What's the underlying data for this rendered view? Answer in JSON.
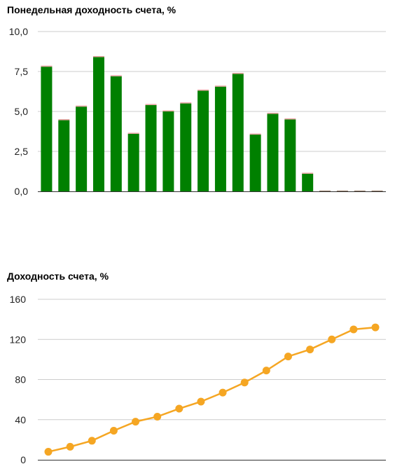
{
  "chart_data": [
    {
      "type": "bar",
      "title": "Понедельная доходность счета, %",
      "ylim": [
        0,
        10
      ],
      "yticks": [
        "0,0",
        "2,5",
        "5,0",
        "7,5",
        "10,0"
      ],
      "ytick_values": [
        0,
        2.5,
        5,
        7.5,
        10
      ],
      "grid": true,
      "color": "#008000",
      "cap_color": "#e8a0a0",
      "values": [
        7.8,
        4.45,
        5.3,
        8.4,
        7.2,
        3.6,
        5.4,
        5.0,
        5.5,
        6.3,
        6.55,
        7.35,
        3.55,
        4.85,
        4.5,
        1.1,
        0,
        0,
        0,
        0
      ]
    },
    {
      "type": "line",
      "title": "Доходность счета, %",
      "ylim": [
        0,
        160
      ],
      "yticks": [
        "0",
        "40",
        "80",
        "120",
        "160"
      ],
      "ytick_values": [
        0,
        40,
        80,
        120,
        160
      ],
      "grid": true,
      "color": "#f5a623",
      "values": [
        8,
        13,
        19,
        29,
        38,
        43,
        51,
        58,
        67,
        77,
        89,
        103,
        110,
        120,
        130,
        132
      ]
    }
  ]
}
